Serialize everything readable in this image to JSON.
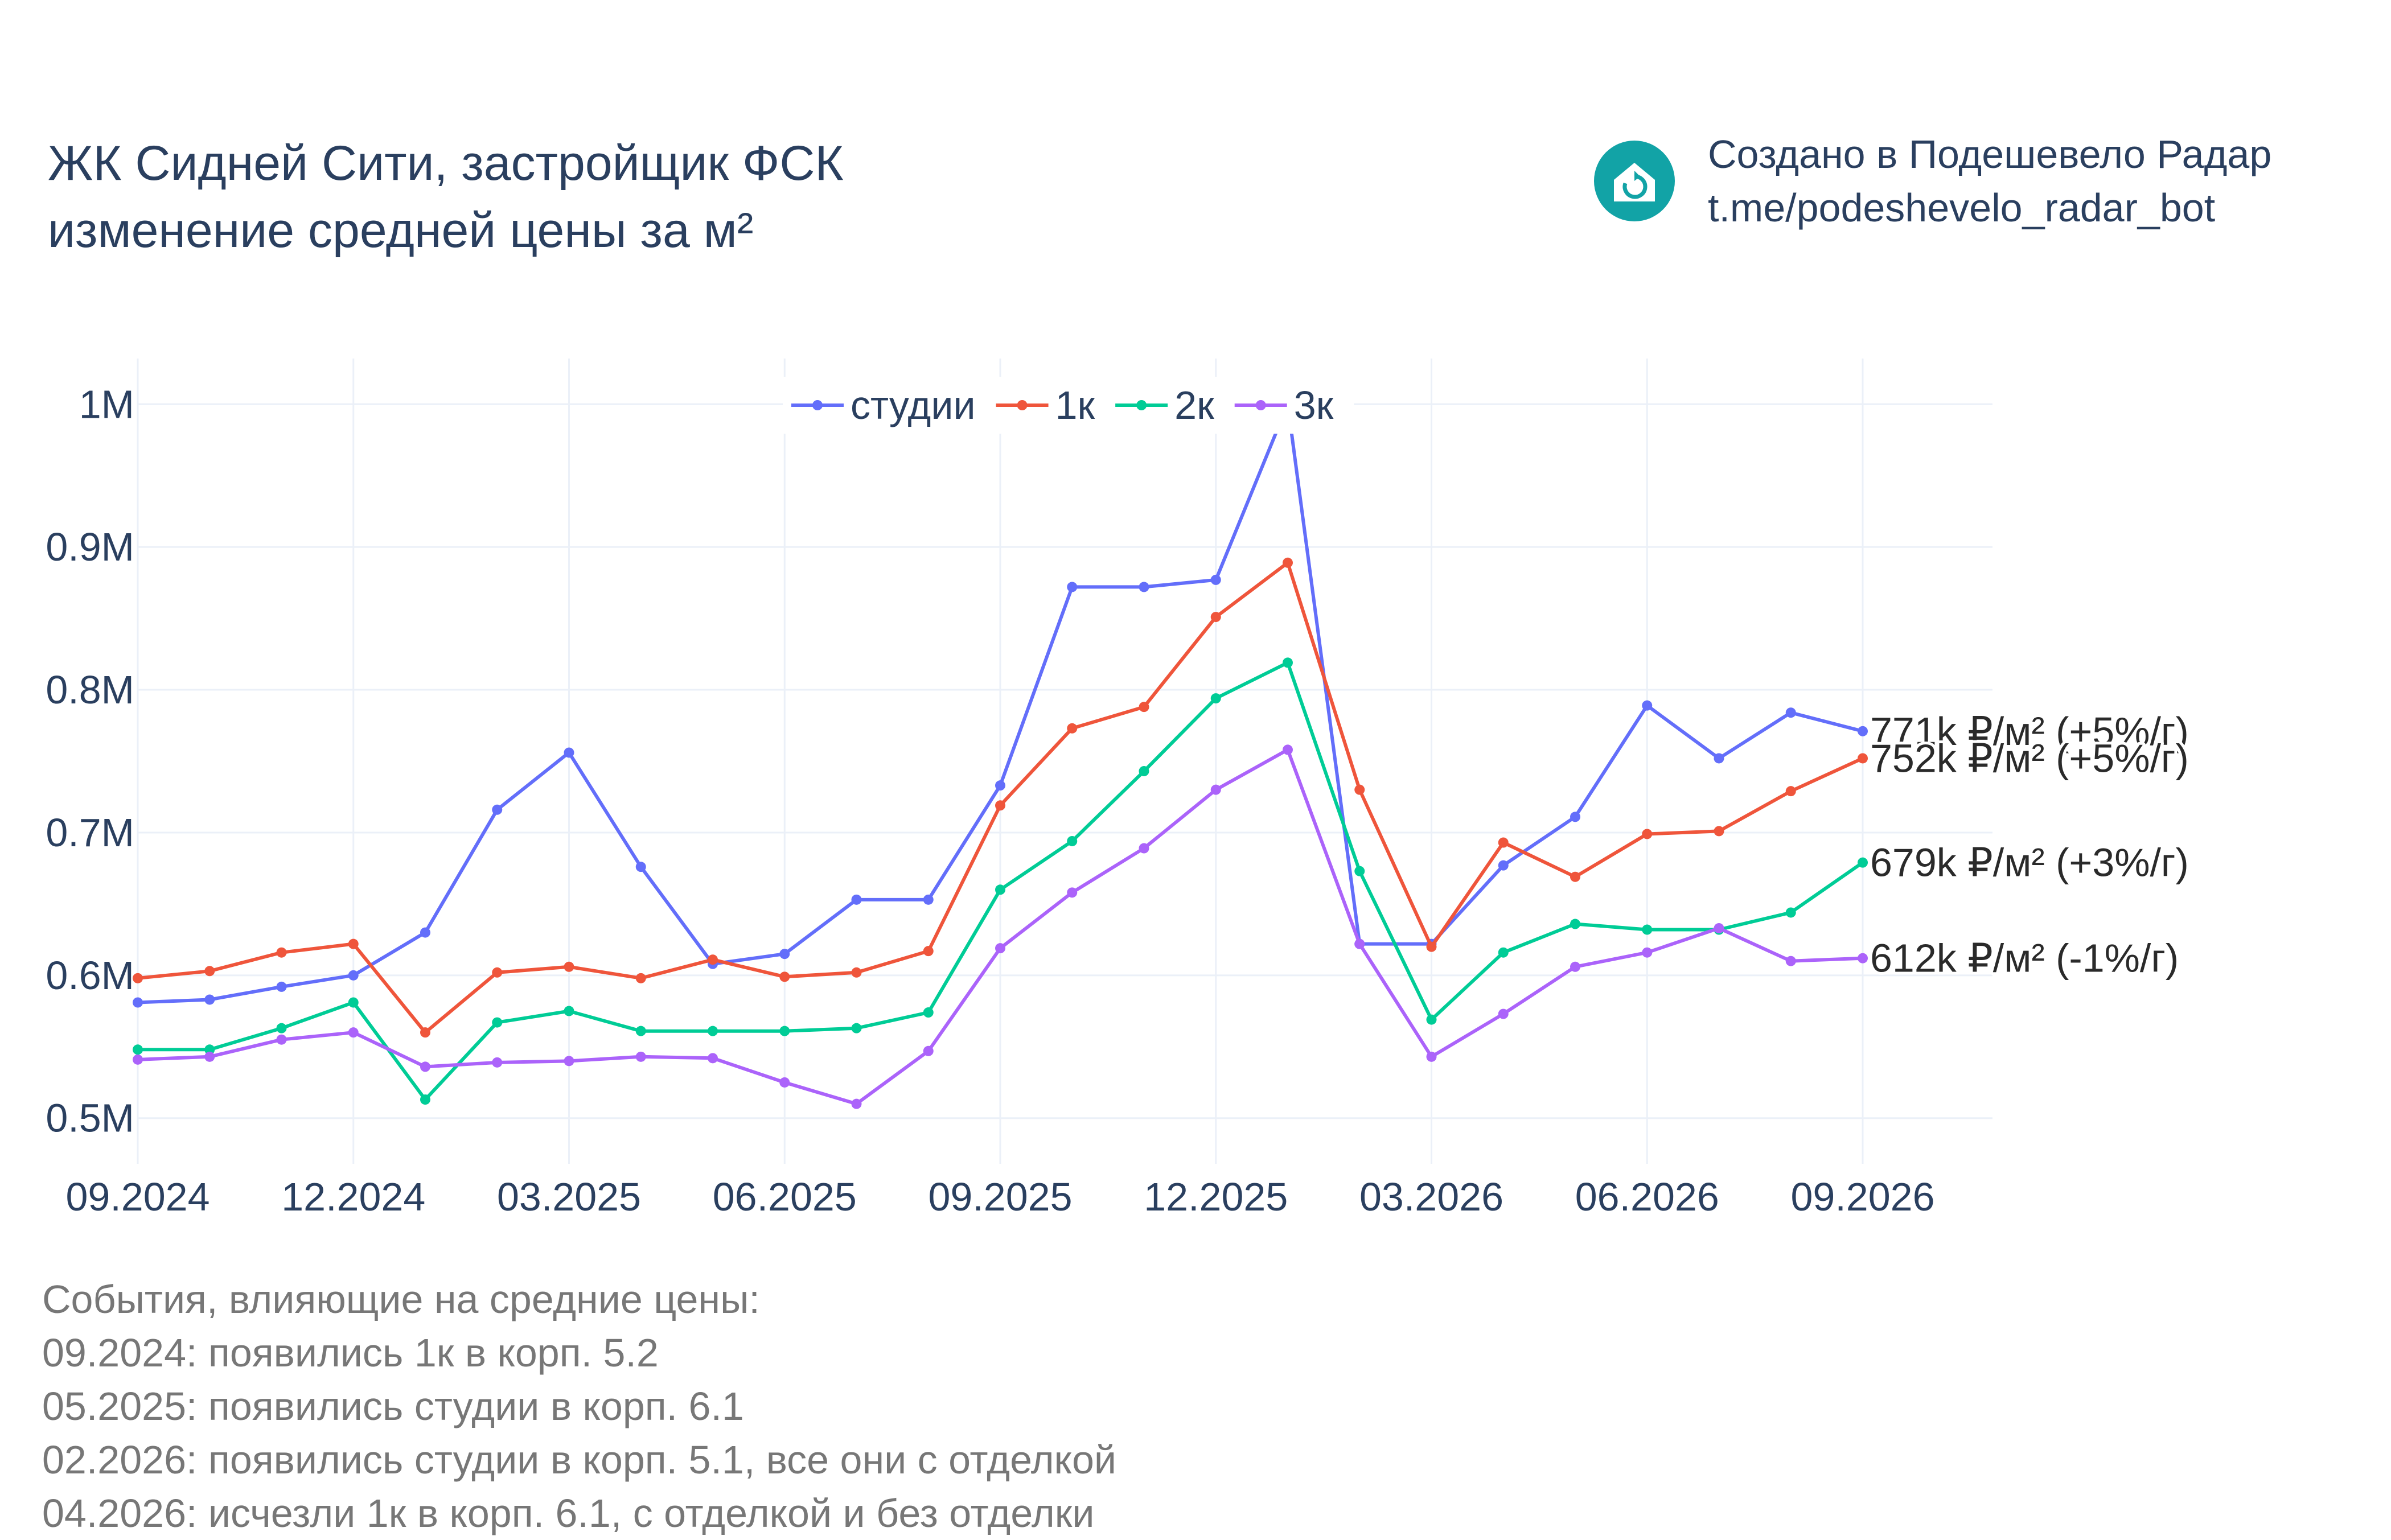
{
  "title": {
    "line1": "ЖК Сидней Сити, застройщик ФСК",
    "line2": "изменение средней цены за м²"
  },
  "brand": {
    "icon": "house-refresh-icon",
    "line1": "Создано в Подешевело Радар",
    "line2": "t.me/podeshevelo_radar_bot",
    "color": "#12a3a6"
  },
  "events": {
    "heading": "События, влияющие на средние цены:",
    "items": [
      "09.2024: появились 1к в корп. 5.2",
      "05.2025: появились студии в корп. 6.1",
      "02.2026: появились студии в корп. 5.1, все они с отделкой",
      "04.2026: исчезли 1к в корп. 6.1, с отделкой и без отделки"
    ]
  },
  "chart_data": {
    "type": "line",
    "x": [
      "09.2024",
      "10.2024",
      "11.2024",
      "12.2024",
      "01.2025",
      "02.2025",
      "03.2025",
      "04.2025",
      "05.2025",
      "06.2025",
      "07.2025",
      "08.2025",
      "09.2025",
      "10.2025",
      "11.2025",
      "12.2025",
      "01.2026",
      "02.2026",
      "03.2026",
      "04.2026",
      "05.2026",
      "06.2026",
      "07.2026",
      "08.2026",
      "09.2026"
    ],
    "x_ticks": [
      "09.2024",
      "12.2024",
      "03.2025",
      "06.2025",
      "09.2025",
      "12.2025",
      "03.2026",
      "06.2026",
      "09.2026"
    ],
    "y_ticks": [
      {
        "value": 500000,
        "label": "0.5M"
      },
      {
        "value": 600000,
        "label": "0.6M"
      },
      {
        "value": 700000,
        "label": "0.7M"
      },
      {
        "value": 800000,
        "label": "0.8M"
      },
      {
        "value": 900000,
        "label": "0.9M"
      },
      {
        "value": 1000000,
        "label": "1M"
      }
    ],
    "ylim": [
      468000,
      1032000
    ],
    "grid": true,
    "legend_placement": "top-center",
    "series": [
      {
        "name": "студии",
        "color": "#636efa",
        "end_label": "771k ₽/м² (+5%/г)",
        "values": [
          581000,
          583000,
          592000,
          600000,
          630000,
          716000,
          756000,
          676000,
          608000,
          615000,
          653000,
          653000,
          733000,
          872000,
          872000,
          877000,
          1000000,
          622000,
          622000,
          677000,
          711000,
          789000,
          752000,
          784000,
          771000
        ]
      },
      {
        "name": "1к",
        "color": "#ef553b",
        "end_label": "752k ₽/м² (+5%/г)",
        "values": [
          598000,
          603000,
          616000,
          622000,
          560000,
          602000,
          606000,
          598000,
          611000,
          599000,
          602000,
          617000,
          719000,
          773000,
          788000,
          851000,
          889000,
          730000,
          620000,
          693000,
          669000,
          699000,
          701000,
          729000,
          752000
        ]
      },
      {
        "name": "2к",
        "color": "#00cc96",
        "end_label": "679k ₽/м² (+3%/г)",
        "values": [
          548000,
          548000,
          563000,
          581000,
          513000,
          567000,
          575000,
          561000,
          561000,
          561000,
          563000,
          574000,
          660000,
          694000,
          743000,
          794000,
          819000,
          673000,
          569000,
          616000,
          636000,
          632000,
          632000,
          644000,
          679000
        ]
      },
      {
        "name": "3к",
        "color": "#ab63fa",
        "end_label": "612k ₽/м² (-1%/г)",
        "values": [
          541000,
          543000,
          555000,
          560000,
          536000,
          539000,
          540000,
          543000,
          542000,
          525000,
          510000,
          547000,
          619000,
          658000,
          689000,
          730000,
          758000,
          622000,
          543000,
          573000,
          606000,
          616000,
          633000,
          610000,
          612000
        ]
      }
    ]
  }
}
